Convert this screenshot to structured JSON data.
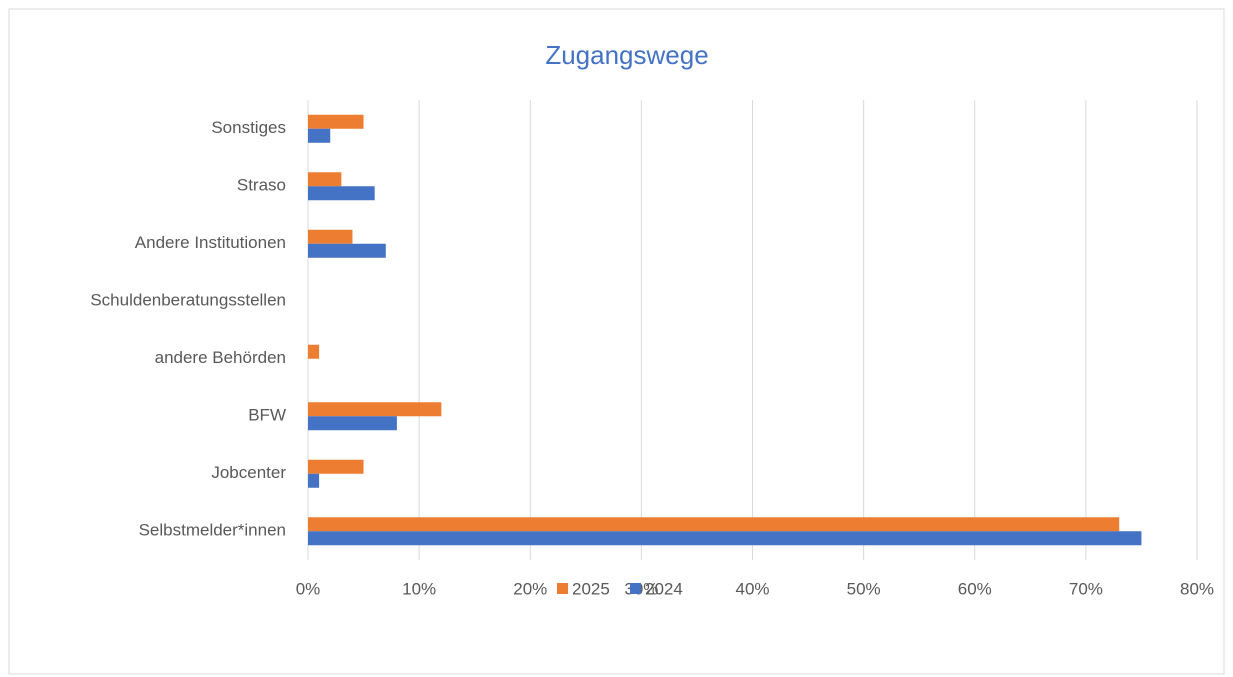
{
  "chart_data": {
    "type": "bar",
    "orientation": "horizontal",
    "title": "Zugangswege",
    "categories": [
      "Selbstmelder*innen",
      "Jobcenter",
      "BFW",
      "andere Behörden",
      "Schuldenberatungsstellen",
      "Andere Institutionen",
      "Straso",
      "Sonstiges"
    ],
    "series": [
      {
        "name": "2025",
        "color": "#ed7d31",
        "values": [
          73,
          5,
          12,
          1,
          0,
          4,
          3,
          5
        ]
      },
      {
        "name": "2024",
        "color": "#4472c4",
        "values": [
          75,
          1,
          8,
          0,
          0,
          7,
          6,
          2
        ]
      }
    ],
    "xlim": [
      0,
      80
    ],
    "xticks": [
      {
        "value": 0,
        "label": "0%"
      },
      {
        "value": 10,
        "label": "10%"
      },
      {
        "value": 20,
        "label": "20%"
      },
      {
        "value": 30,
        "label": "30%"
      },
      {
        "value": 40,
        "label": "40%"
      },
      {
        "value": 50,
        "label": "50%"
      },
      {
        "value": 60,
        "label": "60%"
      },
      {
        "value": 70,
        "label": "70%"
      },
      {
        "value": 80,
        "label": "80%"
      }
    ],
    "grid": true,
    "legend": "bottom"
  }
}
